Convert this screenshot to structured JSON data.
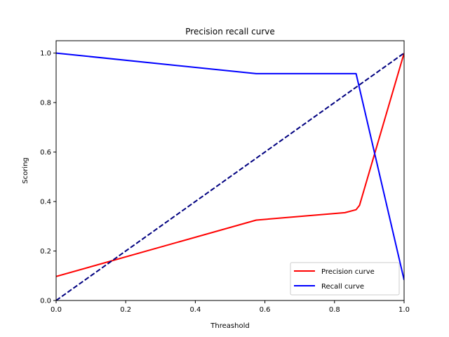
{
  "chart_data": {
    "type": "line",
    "title": "Precision recall curve",
    "xlabel": "Threashold",
    "ylabel": "Scoring",
    "xlim": [
      0,
      1
    ],
    "ylim": [
      0,
      1.05
    ],
    "xticks": [
      "0.0",
      "0.2",
      "0.4",
      "0.6",
      "0.8",
      "1.0"
    ],
    "yticks": [
      "0.0",
      "0.2",
      "0.4",
      "0.6",
      "0.8",
      "1.0"
    ],
    "grid": false,
    "legend_position": "lower-right",
    "series": [
      {
        "name": "Precision curve",
        "color": "#ff0000",
        "style": "solid",
        "x": [
          0.0,
          0.575,
          0.83,
          0.862,
          0.872,
          1.0
        ],
        "y": [
          0.097,
          0.325,
          0.355,
          0.367,
          0.385,
          1.0
        ]
      },
      {
        "name": "Recall curve",
        "color": "#0000ff",
        "style": "solid",
        "x": [
          0.0,
          0.575,
          0.862,
          1.0
        ],
        "y": [
          1.0,
          0.917,
          0.917,
          0.083
        ]
      },
      {
        "name": "",
        "color": "#000080",
        "style": "dashed",
        "x": [
          0.0,
          1.0
        ],
        "y": [
          0.0,
          1.0
        ]
      }
    ]
  }
}
